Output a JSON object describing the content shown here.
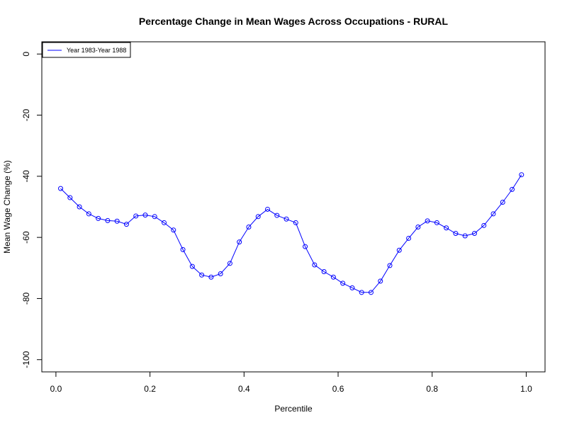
{
  "chart_data": {
    "type": "line",
    "title": "Percentage Change in Mean Wages  Across Occupations - RURAL",
    "xlabel": "Percentile",
    "ylabel": "Mean Wage Change (%)",
    "xlim": [
      -0.03,
      1.04
    ],
    "ylim": [
      -104,
      4
    ],
    "x_ticks": [
      0.0,
      0.2,
      0.4,
      0.6,
      0.8,
      1.0
    ],
    "x_tick_labels": [
      "0.0",
      "0.2",
      "0.4",
      "0.6",
      "0.8",
      "1.0"
    ],
    "y_ticks": [
      0,
      -20,
      -40,
      -60,
      -80,
      -100
    ],
    "y_tick_labels": [
      "0",
      "-20",
      "-40",
      "-60",
      "-80",
      "-100"
    ],
    "grid": false,
    "legend_position": "top-left",
    "series": [
      {
        "name": "Year 1983-Year 1988",
        "color": "#0000ff",
        "marker": "open-circle",
        "x": [
          0.01,
          0.03,
          0.05,
          0.07,
          0.09,
          0.11,
          0.13,
          0.15,
          0.17,
          0.19,
          0.21,
          0.23,
          0.25,
          0.27,
          0.29,
          0.31,
          0.33,
          0.35,
          0.37,
          0.39,
          0.41,
          0.43,
          0.45,
          0.47,
          0.49,
          0.51,
          0.53,
          0.55,
          0.57,
          0.59,
          0.61,
          0.63,
          0.65,
          0.67,
          0.69,
          0.71,
          0.73,
          0.75,
          0.77,
          0.79,
          0.81,
          0.83,
          0.85,
          0.87,
          0.89,
          0.91,
          0.93,
          0.95,
          0.97,
          0.99
        ],
        "y": [
          -44.0,
          -47.0,
          -50.0,
          -52.3,
          -53.8,
          -54.5,
          -54.7,
          -55.7,
          -53.0,
          -52.7,
          -53.2,
          -55.2,
          -57.6,
          -64.0,
          -69.5,
          -72.3,
          -73.0,
          -71.9,
          -68.5,
          -61.5,
          -56.6,
          -53.2,
          -50.8,
          -52.8,
          -54.0,
          -55.2,
          -63.0,
          -69.0,
          -71.2,
          -73.0,
          -75.0,
          -76.5,
          -78.0,
          -78.0,
          -74.3,
          -69.2,
          -64.2,
          -60.3,
          -56.6,
          -54.6,
          -55.2,
          -56.9,
          -58.7,
          -59.5,
          -58.7,
          -56.1,
          -52.3,
          -48.5,
          -44.3,
          -39.5
        ]
      }
    ]
  }
}
